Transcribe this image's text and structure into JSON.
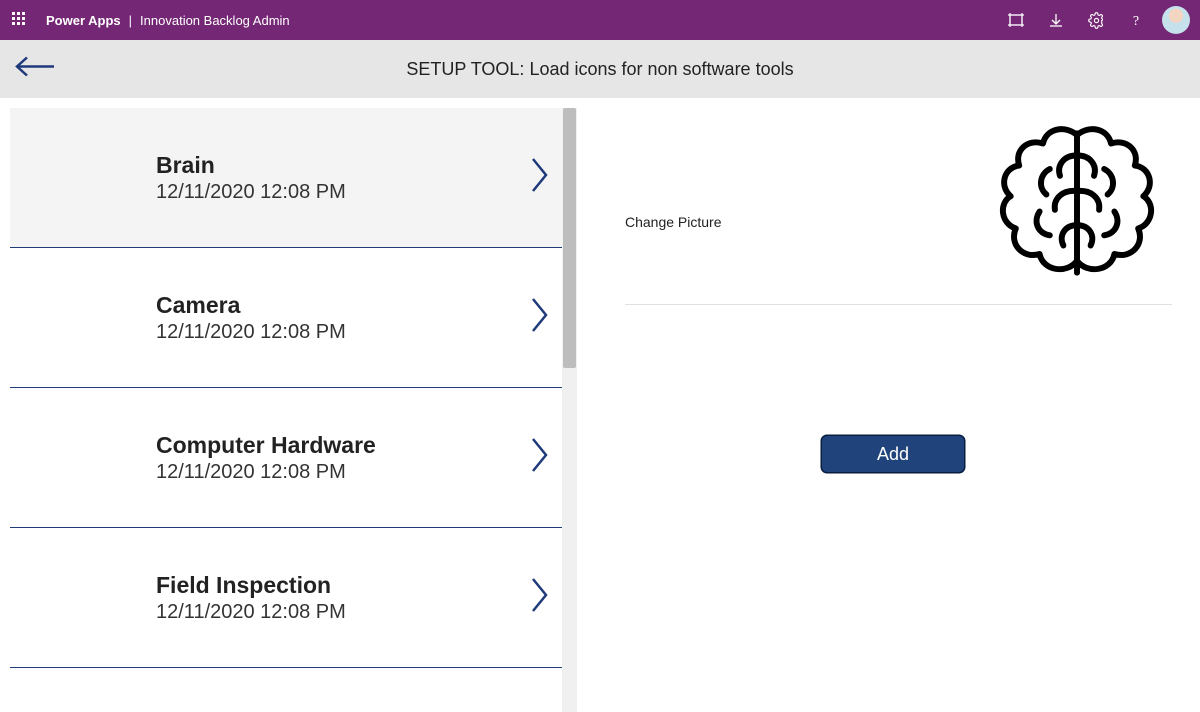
{
  "topbar": {
    "product": "Power Apps",
    "app_name": "Innovation Backlog Admin"
  },
  "subheader": {
    "title": "SETUP TOOL: Load icons for non software tools"
  },
  "colors": {
    "brand_purple": "#742774",
    "accent_navy": "#1f3a7a",
    "button_bg": "#20437c",
    "subheader_bg": "#e6e6e6",
    "selected_bg": "#f4f4f4"
  },
  "list": {
    "items": [
      {
        "title": "Brain",
        "timestamp": "12/11/2020 12:08 PM",
        "selected": true
      },
      {
        "title": "Camera",
        "timestamp": "12/11/2020 12:08 PM",
        "selected": false
      },
      {
        "title": "Computer Hardware",
        "timestamp": "12/11/2020 12:08 PM",
        "selected": false
      },
      {
        "title": "Field Inspection",
        "timestamp": "12/11/2020 12:08 PM",
        "selected": false
      }
    ]
  },
  "detail": {
    "change_picture_label": "Change Picture",
    "add_button_label": "Add",
    "icon_name": "brain-icon"
  }
}
